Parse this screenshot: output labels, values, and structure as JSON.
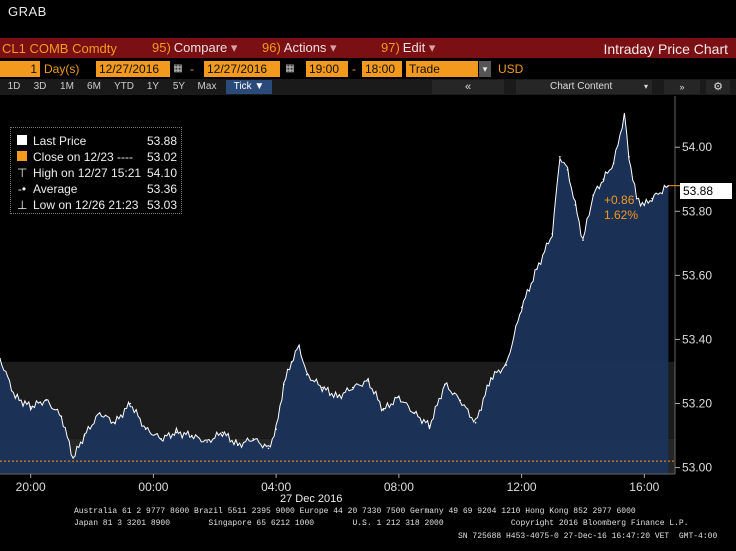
{
  "window": {
    "title": "GRAB"
  },
  "header": {
    "ticker": "CL1 COMB Comdty",
    "menus": [
      {
        "num": "95)",
        "label": "Compare"
      },
      {
        "num": "96)",
        "label": "Actions"
      },
      {
        "num": "97)",
        "label": "Edit"
      }
    ],
    "chart_title": "Intraday Price Chart"
  },
  "controls": {
    "period_value": "1",
    "period_unit": "Day(s)",
    "start_date": "12/27/2016",
    "end_date": "12/27/2016",
    "start_time": "19:00",
    "end_time": "18:00",
    "market": "Trade",
    "currency": "USD"
  },
  "toolbar": {
    "ranges": [
      "1D",
      "3D",
      "1M",
      "6M",
      "YTD",
      "1Y",
      "5Y",
      "Max"
    ],
    "interval": "Tick",
    "chart_content": "Chart Content",
    "collapse": "«"
  },
  "legend": {
    "items": [
      {
        "label": "Last Price",
        "value": "53.88"
      },
      {
        "label": "Close on 12/23 ----",
        "value": "53.02"
      },
      {
        "label": "High on 12/27 15:21",
        "value": "54.10"
      },
      {
        "label": "Average",
        "value": "53.36"
      },
      {
        "label": "Low on 12/26 21:23",
        "value": "53.03"
      }
    ]
  },
  "annotations": {
    "last_price": "53.88",
    "change": "+0.86",
    "change_pct": "1.62%"
  },
  "footer": {
    "line1": "Australia 61 2 9777 8600 Brazil 5511 2395 9000 Europe 44 20 7330 7500 Germany 49 69 9204 1210 Hong Kong 852 2977 6000",
    "line2": "Japan 81 3 3201 8900        Singapore 65 6212 1000        U.S. 1 212 318 2000              Copyright 2016 Bloomberg Finance L.P.",
    "line3": "SN 725688 H453-4075-0 27-Dec-16 16:47:20 VET  GMT-4:00"
  },
  "colors": {
    "accent": "#f39a1e",
    "header_bg": "#7a0f14",
    "area": "#1b3358",
    "line": "#ffffff"
  },
  "chart_data": {
    "type": "area",
    "title": "",
    "xlabel": "27 Dec 2016",
    "ylabel": "",
    "x_ticks": [
      "20:00",
      "00:00",
      "04:00",
      "08:00",
      "12:00",
      "16:00"
    ],
    "y_ticks": [
      53.0,
      53.2,
      53.4,
      53.6,
      53.8,
      54.0
    ],
    "ylim": [
      52.98,
      54.11
    ],
    "reference_line": {
      "label": "Close on 12/23",
      "value": 53.02
    },
    "series": [
      {
        "name": "Last Price",
        "points": [
          [
            "19:00",
            53.34
          ],
          [
            "19:30",
            53.22
          ],
          [
            "20:00",
            53.19
          ],
          [
            "20:30",
            53.21
          ],
          [
            "21:00",
            53.16
          ],
          [
            "21:23",
            53.03
          ],
          [
            "21:45",
            53.1
          ],
          [
            "22:15",
            53.17
          ],
          [
            "22:45",
            53.14
          ],
          [
            "23:15",
            53.2
          ],
          [
            "23:45",
            53.12
          ],
          [
            "00:15",
            53.09
          ],
          [
            "00:45",
            53.11
          ],
          [
            "01:15",
            53.1
          ],
          [
            "01:45",
            53.08
          ],
          [
            "02:15",
            53.11
          ],
          [
            "02:45",
            53.07
          ],
          [
            "03:15",
            53.09
          ],
          [
            "03:45",
            53.06
          ],
          [
            "04:00",
            53.12
          ],
          [
            "04:15",
            53.26
          ],
          [
            "04:30",
            53.33
          ],
          [
            "04:45",
            53.38
          ],
          [
            "05:00",
            53.29
          ],
          [
            "05:30",
            53.25
          ],
          [
            "06:00",
            53.22
          ],
          [
            "06:30",
            53.25
          ],
          [
            "07:00",
            53.27
          ],
          [
            "07:30",
            53.18
          ],
          [
            "08:00",
            53.22
          ],
          [
            "08:30",
            53.17
          ],
          [
            "09:00",
            53.13
          ],
          [
            "09:30",
            53.26
          ],
          [
            "10:00",
            53.21
          ],
          [
            "10:30",
            53.14
          ],
          [
            "11:00",
            53.28
          ],
          [
            "11:30",
            53.32
          ],
          [
            "12:00",
            53.5
          ],
          [
            "12:30",
            53.62
          ],
          [
            "13:00",
            53.73
          ],
          [
            "13:15",
            53.97
          ],
          [
            "13:30",
            53.93
          ],
          [
            "13:45",
            53.82
          ],
          [
            "14:00",
            53.71
          ],
          [
            "14:20",
            53.85
          ],
          [
            "14:40",
            53.9
          ],
          [
            "15:00",
            53.95
          ],
          [
            "15:21",
            54.1
          ],
          [
            "15:30",
            53.97
          ],
          [
            "15:45",
            53.84
          ],
          [
            "16:00",
            53.82
          ],
          [
            "16:15",
            53.84
          ],
          [
            "16:47",
            53.88
          ]
        ]
      }
    ],
    "legend_position": "top-left",
    "grid": false
  }
}
